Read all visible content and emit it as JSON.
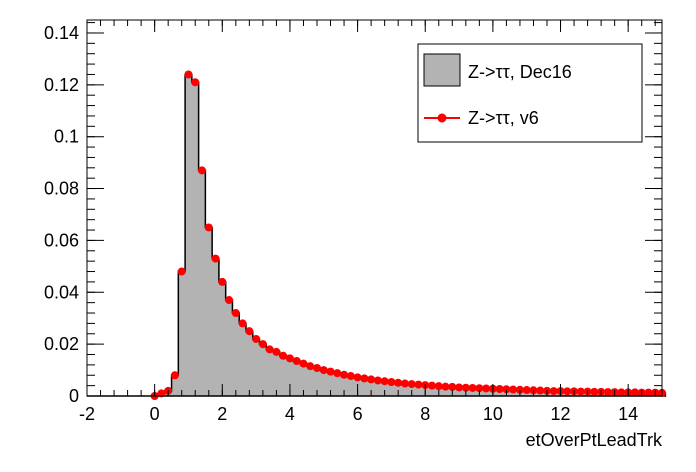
{
  "chart_data": {
    "type": "histogram",
    "xlabel": "etOverPtLeadTrk",
    "ylabel": "",
    "xlim": [
      -2,
      15
    ],
    "ylim": [
      0,
      0.145
    ],
    "x_ticks": [
      -2,
      0,
      2,
      4,
      6,
      8,
      10,
      12,
      14
    ],
    "y_ticks": [
      0,
      0.02,
      0.04,
      0.06,
      0.08,
      0.1,
      0.12,
      0.14
    ],
    "x_tick_labels": [
      "-2",
      "0",
      "2",
      "4",
      "6",
      "8",
      "10",
      "12",
      "14"
    ],
    "y_tick_labels": [
      "0",
      "0.02",
      "0.04",
      "0.06",
      "0.08",
      "0.1",
      "0.12",
      "0.14"
    ],
    "bin_width": 0.2,
    "bin_start": -0.1,
    "legend_position": "top-right",
    "series": [
      {
        "name": "Z->ττ, Dec16",
        "style": "filled-histogram",
        "fill": "#b3b3b3",
        "line": "#000000",
        "values": [
          0.0,
          0.001,
          0.002,
          0.008,
          0.048,
          0.124,
          0.121,
          0.087,
          0.065,
          0.053,
          0.044,
          0.037,
          0.032,
          0.028,
          0.025,
          0.022,
          0.02,
          0.018,
          0.017,
          0.0155,
          0.0145,
          0.0135,
          0.0125,
          0.0115,
          0.0108,
          0.01,
          0.0094,
          0.0088,
          0.0082,
          0.0077,
          0.0072,
          0.0068,
          0.0064,
          0.006,
          0.0057,
          0.0054,
          0.0051,
          0.0048,
          0.0046,
          0.0044,
          0.0042,
          0.004,
          0.0038,
          0.0036,
          0.0035,
          0.0033,
          0.0032,
          0.0031,
          0.003,
          0.0029,
          0.0028,
          0.0027,
          0.0026,
          0.0025,
          0.0024,
          0.0023,
          0.0022,
          0.0021,
          0.002,
          0.0019,
          0.0019,
          0.0018,
          0.0018,
          0.0017,
          0.0017,
          0.0016,
          0.0016,
          0.0015,
          0.0015,
          0.0014,
          0.0014,
          0.0014,
          0.0013,
          0.0013,
          0.0013,
          0.0012
        ]
      },
      {
        "name": "Z->ττ, v6",
        "style": "markers",
        "color": "#ff0000",
        "values": [
          0.0,
          0.001,
          0.002,
          0.008,
          0.048,
          0.124,
          0.121,
          0.087,
          0.065,
          0.053,
          0.044,
          0.037,
          0.032,
          0.028,
          0.025,
          0.022,
          0.02,
          0.018,
          0.017,
          0.0155,
          0.0145,
          0.0135,
          0.0125,
          0.0115,
          0.0108,
          0.01,
          0.0094,
          0.0088,
          0.0082,
          0.0077,
          0.0072,
          0.0068,
          0.0064,
          0.006,
          0.0057,
          0.0054,
          0.0051,
          0.0048,
          0.0046,
          0.0044,
          0.0042,
          0.004,
          0.0038,
          0.0036,
          0.0035,
          0.0033,
          0.0032,
          0.0031,
          0.003,
          0.0029,
          0.0028,
          0.0027,
          0.0026,
          0.0025,
          0.0024,
          0.0023,
          0.0022,
          0.0021,
          0.002,
          0.0019,
          0.0019,
          0.0018,
          0.0018,
          0.0017,
          0.0017,
          0.0016,
          0.0016,
          0.0015,
          0.0015,
          0.0014,
          0.0014,
          0.0014,
          0.0013,
          0.0013,
          0.0013,
          0.0012
        ]
      }
    ]
  }
}
